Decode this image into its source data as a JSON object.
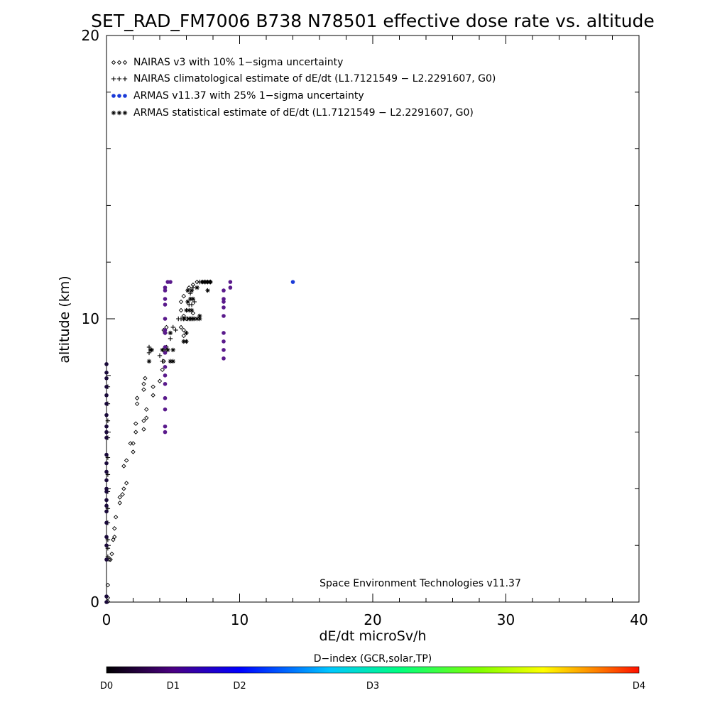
{
  "chart_data": {
    "type": "scatter",
    "title": "SET_RAD_FM7006  B738 N78501 effective dose rate vs. altitude",
    "xlabel": "dE/dt microSv/h",
    "ylabel": "altitude (km)",
    "xlim": [
      0,
      40
    ],
    "ylim": [
      0,
      20
    ],
    "xticks": [
      "0",
      "10",
      "20",
      "30",
      "40"
    ],
    "yticks": [
      "0",
      "10",
      "20"
    ],
    "grid": false,
    "legend_position": "top-left",
    "annotation": "Space Environment Technologies v11.37",
    "colorbar": {
      "title": "D−index (GCR,solar,TP)",
      "labels": [
        {
          "text": "D0",
          "value": 0
        },
        {
          "text": "D1",
          "value": 0.125
        },
        {
          "text": "D2",
          "value": 0.25
        },
        {
          "text": "D3",
          "value": 0.5
        },
        {
          "text": "D4",
          "value": 1.0
        }
      ],
      "colors": [
        "#000000",
        "#4b0082",
        "#0000ff",
        "#00ffff",
        "#00ff00",
        "#ffff00",
        "#ff0000"
      ]
    },
    "series": [
      {
        "name": "NAIRAS v3 with 10% 1−sigma uncertainty",
        "marker": "diamond",
        "color": "#000000",
        "points": [
          [
            0.1,
            0.02
          ],
          [
            0.1,
            0.15
          ],
          [
            0.1,
            0.6
          ],
          [
            0.2,
            1.5
          ],
          [
            0.3,
            1.5
          ],
          [
            0.4,
            1.7
          ],
          [
            0.5,
            2.2
          ],
          [
            0.6,
            2.3
          ],
          [
            0.6,
            2.6
          ],
          [
            0.7,
            3.0
          ],
          [
            1.0,
            3.5
          ],
          [
            1.0,
            3.7
          ],
          [
            1.2,
            3.8
          ],
          [
            1.3,
            4.0
          ],
          [
            1.5,
            4.2
          ],
          [
            1.3,
            4.8
          ],
          [
            1.5,
            5.0
          ],
          [
            2.0,
            5.3
          ],
          [
            2.0,
            5.6
          ],
          [
            1.8,
            5.6
          ],
          [
            2.2,
            6.0
          ],
          [
            2.2,
            6.3
          ],
          [
            2.8,
            6.1
          ],
          [
            2.8,
            6.4
          ],
          [
            3.0,
            6.5
          ],
          [
            3.0,
            6.8
          ],
          [
            2.3,
            7.0
          ],
          [
            2.3,
            7.2
          ],
          [
            2.8,
            7.5
          ],
          [
            2.8,
            7.7
          ],
          [
            2.9,
            7.9
          ],
          [
            3.5,
            7.3
          ],
          [
            3.5,
            7.6
          ],
          [
            4.0,
            7.8
          ],
          [
            4.2,
            8.2
          ],
          [
            4.3,
            8.5
          ],
          [
            4.3,
            8.9
          ],
          [
            4.5,
            9.0
          ],
          [
            4.3,
            9.6
          ],
          [
            4.5,
            9.7
          ],
          [
            5.6,
            9.7
          ],
          [
            5.8,
            9.4
          ],
          [
            5.8,
            9.6
          ],
          [
            5.8,
            10.1
          ],
          [
            5.6,
            10.3
          ],
          [
            6.0,
            10.0
          ],
          [
            6.5,
            10.2
          ],
          [
            5.6,
            10.6
          ],
          [
            5.8,
            10.8
          ],
          [
            6.2,
            11.1
          ],
          [
            6.5,
            11.2
          ],
          [
            6.8,
            11.3
          ],
          [
            7.2,
            11.3
          ],
          [
            7.4,
            11.3
          ],
          [
            7.6,
            11.3
          ],
          [
            7.8,
            11.3
          ]
        ]
      },
      {
        "name": "NAIRAS climatological estimate of dE/dt (L1.7121549 − L2.2291607, G0)",
        "marker": "plus",
        "color": "#000000",
        "points": [
          [
            0.1,
            1.6
          ],
          [
            0.1,
            1.9
          ],
          [
            0.1,
            2.2
          ],
          [
            0.1,
            2.8
          ],
          [
            0.1,
            3.3
          ],
          [
            0.1,
            3.9
          ],
          [
            0.1,
            4.5
          ],
          [
            0.1,
            5.1
          ],
          [
            0.1,
            5.8
          ],
          [
            0.1,
            6.4
          ],
          [
            0.1,
            7.0
          ],
          [
            0.1,
            7.6
          ],
          [
            3.2,
            8.8
          ],
          [
            3.2,
            9.0
          ],
          [
            4.2,
            8.5
          ],
          [
            4.4,
            8.9
          ],
          [
            4.0,
            8.7
          ],
          [
            4.4,
            9.5
          ],
          [
            4.8,
            9.3
          ],
          [
            5.0,
            9.7
          ],
          [
            5.2,
            9.6
          ],
          [
            5.4,
            10.0
          ],
          [
            5.6,
            10.0
          ],
          [
            5.8,
            10.0
          ],
          [
            6.1,
            10.0
          ],
          [
            6.3,
            10.0
          ],
          [
            6.5,
            10.0
          ],
          [
            6.2,
            10.5
          ],
          [
            6.4,
            10.5
          ],
          [
            6.6,
            10.6
          ],
          [
            6.3,
            10.9
          ],
          [
            6.5,
            11.1
          ],
          [
            6.8,
            11.1
          ],
          [
            7.0,
            11.3
          ],
          [
            7.4,
            11.3
          ],
          [
            7.8,
            11.3
          ]
        ]
      },
      {
        "name": "ARMAS v11.37 with 25% 1−sigma uncertainty",
        "marker": "circle",
        "color": "#2040e0",
        "points": [
          [
            0.0,
            0.0
          ],
          [
            0.0,
            0.2
          ],
          [
            0.0,
            1.5
          ],
          [
            0.0,
            2.0
          ],
          [
            0.0,
            2.3
          ],
          [
            0.0,
            2.8
          ],
          [
            0.0,
            3.2
          ],
          [
            0.0,
            3.4
          ],
          [
            0.0,
            3.6
          ],
          [
            0.0,
            3.9
          ],
          [
            0.0,
            4.0
          ],
          [
            0.0,
            4.3
          ],
          [
            0.0,
            4.6
          ],
          [
            0.0,
            4.9
          ],
          [
            0.0,
            5.2
          ],
          [
            0.0,
            5.8
          ],
          [
            0.0,
            6.0
          ],
          [
            0.0,
            6.2
          ],
          [
            0.0,
            6.6
          ],
          [
            0.0,
            7.0
          ],
          [
            0.0,
            7.3
          ],
          [
            0.0,
            7.6
          ],
          [
            0.0,
            7.9
          ],
          [
            0.0,
            8.1
          ],
          [
            0.0,
            8.4
          ],
          [
            4.4,
            6.0
          ],
          [
            4.4,
            6.2
          ],
          [
            4.4,
            6.8
          ],
          [
            4.4,
            7.2
          ],
          [
            4.4,
            7.7
          ],
          [
            4.4,
            8.0
          ],
          [
            4.4,
            8.3
          ],
          [
            4.4,
            8.8
          ],
          [
            4.4,
            9.0
          ],
          [
            4.4,
            9.5
          ],
          [
            4.4,
            9.6
          ],
          [
            4.4,
            10.0
          ],
          [
            4.4,
            10.5
          ],
          [
            4.4,
            10.7
          ],
          [
            4.4,
            11.0
          ],
          [
            4.4,
            11.1
          ],
          [
            4.6,
            11.3
          ],
          [
            4.8,
            11.3
          ],
          [
            8.8,
            8.6
          ],
          [
            8.8,
            8.9
          ],
          [
            8.8,
            9.2
          ],
          [
            8.8,
            9.5
          ],
          [
            8.8,
            10.1
          ],
          [
            8.8,
            10.4
          ],
          [
            8.8,
            10.6
          ],
          [
            8.8,
            10.7
          ],
          [
            8.8,
            11.0
          ],
          [
            9.3,
            11.1
          ],
          [
            9.3,
            11.3
          ],
          [
            14.0,
            11.3
          ]
        ]
      },
      {
        "name": "ARMAS statistical estimate of dE/dt (L1.7121549 − L2.2291607, G0)",
        "marker": "asterisk",
        "color": "#000000",
        "points": [
          [
            3.2,
            8.5
          ],
          [
            3.3,
            8.9
          ],
          [
            3.4,
            8.9
          ],
          [
            4.2,
            8.9
          ],
          [
            4.6,
            8.9
          ],
          [
            4.8,
            8.5
          ],
          [
            5.0,
            8.5
          ],
          [
            5.0,
            8.9
          ],
          [
            4.8,
            9.5
          ],
          [
            5.8,
            9.2
          ],
          [
            6.0,
            9.2
          ],
          [
            6.0,
            9.5
          ],
          [
            5.8,
            10.0
          ],
          [
            6.2,
            10.0
          ],
          [
            6.4,
            10.0
          ],
          [
            6.6,
            10.0
          ],
          [
            6.8,
            10.0
          ],
          [
            7.0,
            10.0
          ],
          [
            6.0,
            10.3
          ],
          [
            6.2,
            10.3
          ],
          [
            6.4,
            10.3
          ],
          [
            7.0,
            10.1
          ],
          [
            6.1,
            10.6
          ],
          [
            6.3,
            10.7
          ],
          [
            6.5,
            10.7
          ],
          [
            6.1,
            11.0
          ],
          [
            6.4,
            11.0
          ],
          [
            6.8,
            11.1
          ],
          [
            7.6,
            11.0
          ],
          [
            7.8,
            11.3
          ],
          [
            7.6,
            11.3
          ],
          [
            7.4,
            11.3
          ],
          [
            7.2,
            11.3
          ]
        ]
      }
    ],
    "d_index_points": {
      "note_colors": "purple dots at D1 level",
      "purple_x": [
        4.4,
        4.6,
        4.8,
        8.8,
        9.3
      ],
      "purple_color": "#5a1a8c",
      "dark_color": "#1a0a3a"
    }
  }
}
